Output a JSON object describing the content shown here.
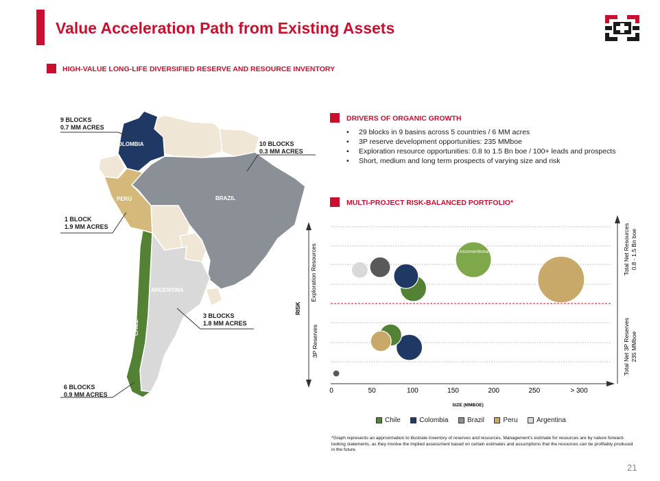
{
  "header": {
    "title": "Value Acceleration Path from Existing Assets"
  },
  "logo": {
    "icon": "company-logo-icon"
  },
  "sections": {
    "inventory_title": "HIGH-VALUE LONG-LIFE DIVERSIFIED RESERVE AND RESOURCE INVENTORY",
    "drivers_title": "DRIVERS OF ORGANIC GROWTH",
    "portfolio_title": "MULTI-PROJECT RISK-BALANCED PORTFOLIO*"
  },
  "drivers": [
    "29 blocks in 9 basins across 5 countries / 6 MM acres",
    "3P reserve development opportunities: 235 MMboe",
    "Exploration resource opportunities: 0.8 to 1.5 Bn boe / 100+ leads and prospects",
    "Short, medium and long term prospects of varying size and risk"
  ],
  "map": {
    "countries": {
      "colombia": "COLOMBIA",
      "brazil": "BRAZIL",
      "peru": "PERU",
      "argentina": "ARGENTINA",
      "chile": "CHILE"
    },
    "callouts": {
      "colombia": [
        "9 BLOCKS",
        "0.7 MM ACRES"
      ],
      "brazil": [
        "10 BLOCKS",
        "0.3 MM ACRES"
      ],
      "peru": [
        "1 BLOCK",
        "1.9 MM ACRES"
      ],
      "argentina": [
        "3 BLOCKS",
        "1.8 MM ACRES"
      ],
      "chile": [
        "6 BLOCKS",
        "0.9 MM ACRES"
      ]
    },
    "colors": {
      "colombia": "#1f3864",
      "brazil": "#8a9095",
      "peru": "#d4b97a",
      "argentina": "#d9d9d9",
      "chile": "#548235",
      "other": "#efe6d5"
    }
  },
  "chart_data": {
    "type": "scatter",
    "title": "",
    "xlabel": "SIZE (MMBOE)",
    "ylabel": "RISK",
    "x_ticks": [
      "0",
      "50",
      "100",
      "150",
      "200",
      "250",
      "> 300"
    ],
    "xlim": [
      0,
      340
    ],
    "band_labels": {
      "exploration": "Exploration Resources",
      "reserves": "3P Reserves"
    },
    "right_labels": {
      "exploration": [
        "Total Net Resources",
        "0.8 - 1.5 Bn boe"
      ],
      "reserves": [
        "Total Net 3P Reserves",
        "235 MMboe"
      ]
    },
    "legend": [
      "Chile",
      "Colombia",
      "Brazil",
      "Peru",
      "Argentina"
    ],
    "colors": {
      "Chile": "#548235",
      "Colombia": "#1f3864",
      "Brazil": "#595959",
      "Peru": "#c9a96a",
      "Argentina": "#d9d9d9",
      "Unconventional": "#7fa84b"
    },
    "series": [
      {
        "name": "Argentina",
        "points": [
          {
            "x": 35,
            "band": "exploration",
            "size": 12
          }
        ]
      },
      {
        "name": "Brazil",
        "points": [
          {
            "x": 60,
            "band": "exploration",
            "size": 15
          },
          {
            "x": 6,
            "band": "base",
            "size": 5
          }
        ]
      },
      {
        "name": "Colombia",
        "points": [
          {
            "x": 92,
            "band": "exploration",
            "size": 18
          },
          {
            "x": 96,
            "band": "reserves",
            "size": 19
          }
        ]
      },
      {
        "name": "Chile",
        "points": [
          {
            "x": 101,
            "band": "exploration",
            "size": 19
          },
          {
            "x": 73,
            "band": "reserves",
            "size": 16
          }
        ]
      },
      {
        "name": "Peru",
        "points": [
          {
            "x": 283,
            "band": "exploration",
            "size": 34
          },
          {
            "x": 61,
            "band": "reserves",
            "size": 15
          }
        ]
      },
      {
        "name": "Unconventional",
        "label": "Unconventional",
        "points": [
          {
            "x": 175,
            "band": "exploration",
            "size": 26
          }
        ]
      }
    ]
  },
  "footnote": "*Graph represents an approximation to illustrate inventory of reserves and resources. Management's estimate for resources are by nature forward-looking statements, as they involve the implied assessment based on certain estimates and assumptions that the resources can be profitably produced in the future.",
  "page": {
    "number": "21"
  }
}
